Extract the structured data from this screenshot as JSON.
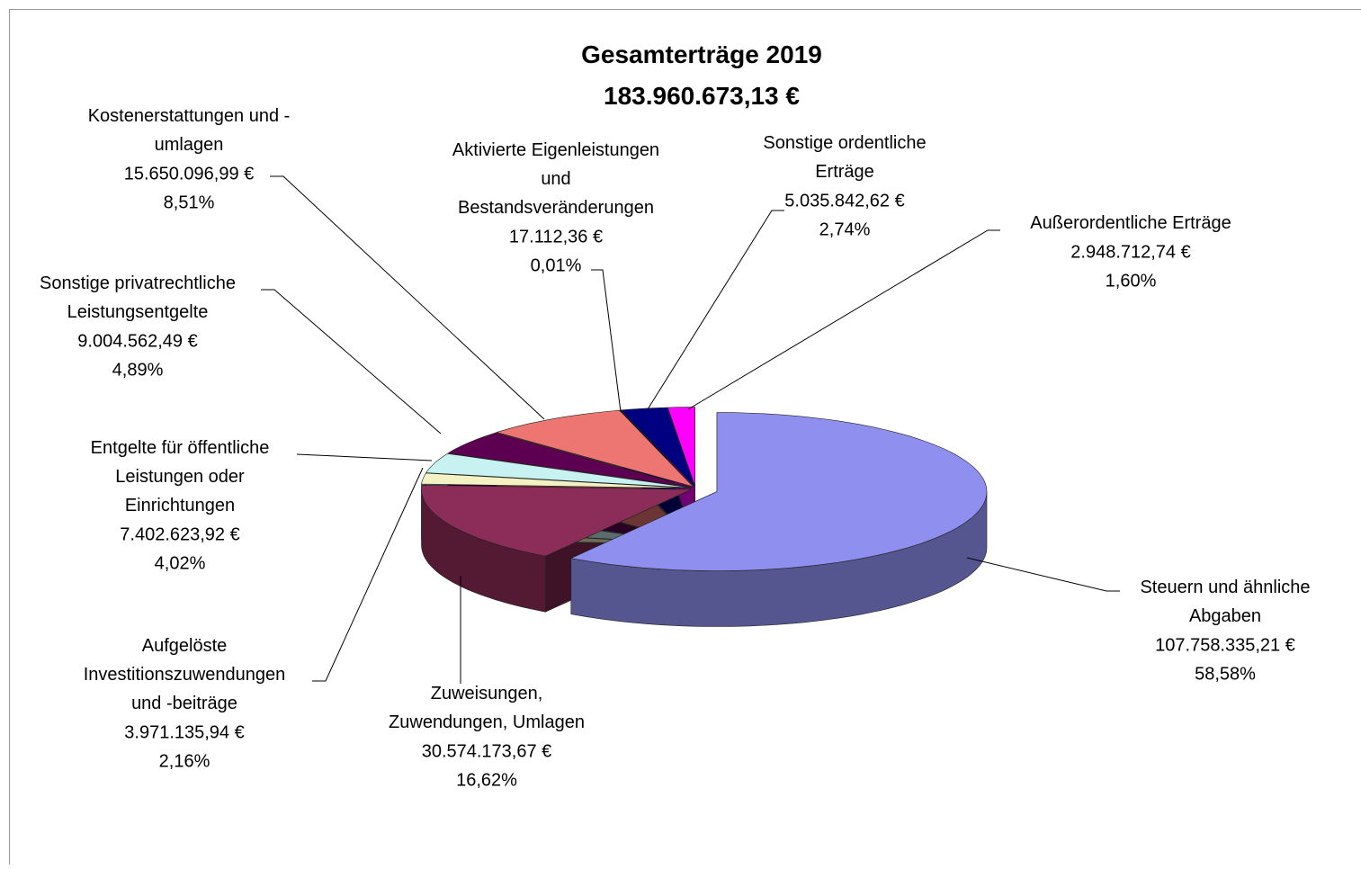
{
  "chart_data": {
    "type": "pie3d",
    "title": "Gesamterträge 2019",
    "subtitle": "183.960.673,13 €",
    "categories": [
      "Steuern und ähnliche Abgaben",
      "Zuweisungen, Zuwendungen, Umlagen",
      "Aufgelöste Investitionszuwendungen und -beiträge",
      "Entgelte für öffentliche Leistungen oder Einrichtungen",
      "Sonstige privatrechtliche Leistungsentgelte",
      "Kostenerstattungen und -umlagen",
      "Aktivierte Eigenleistungen und Bestandsveränderungen",
      "Sonstige ordentliche Erträge",
      "Außerordentliche Erträge"
    ],
    "values": [
      107758335.21,
      30574173.67,
      3971135.94,
      7402623.92,
      9004562.49,
      15650096.99,
      17112.36,
      5035842.62,
      2948712.74
    ],
    "value_labels": [
      "107.758.335,21 €",
      "30.574.173,67 €",
      "3.971.135,94 €",
      "7.402.623,92 €",
      "9.004.562,49 €",
      "15.650.096,99 €",
      "17.112,36 €",
      "5.035.842,62 €",
      "2.948.712,74 €"
    ],
    "percentages": [
      58.58,
      16.62,
      2.16,
      4.02,
      4.89,
      8.51,
      0.01,
      2.74,
      1.6
    ],
    "percentage_labels": [
      "58,58%",
      "16,62%",
      "2,16%",
      "4,02%",
      "4,89%",
      "8,51%",
      "0,01%",
      "2,74%",
      "1,60%"
    ],
    "colors": [
      "#8f8ff0",
      "#8c2c58",
      "#f2f2c4",
      "#c8f2f2",
      "#5e0052",
      "#ee7672",
      "#0066bb",
      "#000080",
      "#ff00ff"
    ]
  }
}
